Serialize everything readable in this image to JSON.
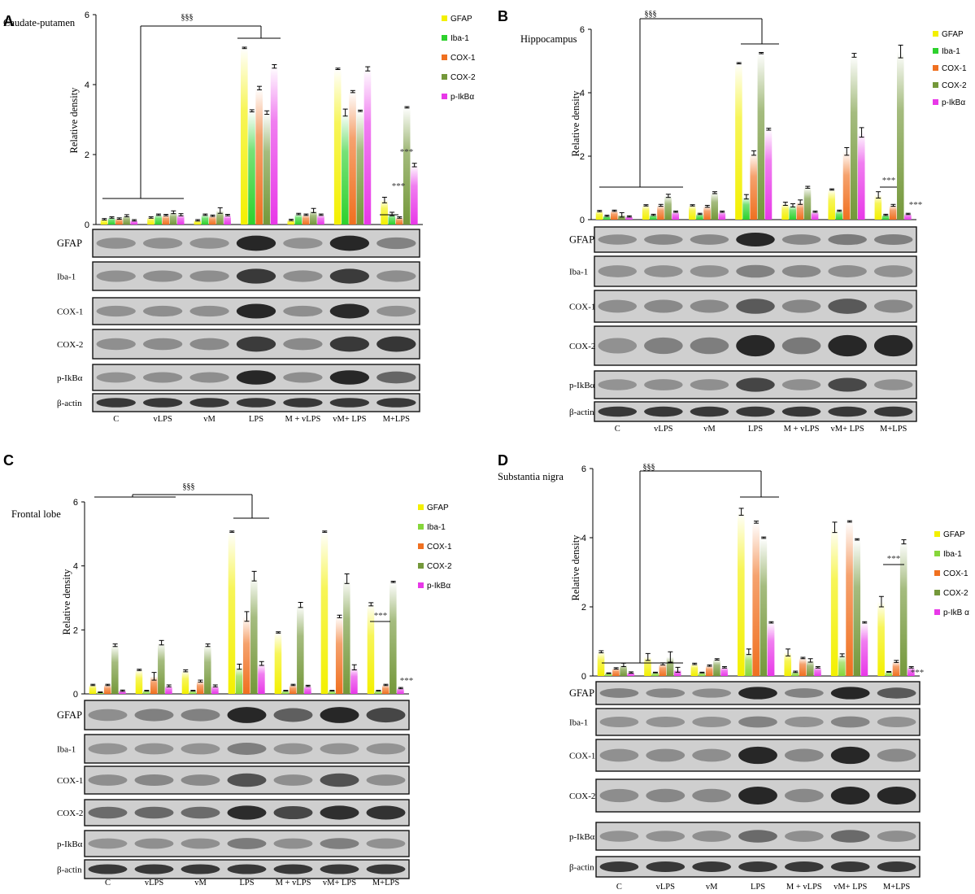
{
  "figure": {
    "y_axis_label": "Relative density",
    "group_labels": [
      "C",
      "vLPS",
      "vM",
      "LPS",
      "M + vLPS",
      "vM+ LPS",
      "M+LPS"
    ],
    "significance_main": "§§§",
    "significance_star": "***"
  },
  "chart_data": [
    {
      "type": "bar",
      "panel": "A",
      "title": "Caudate-putamen",
      "ylabel": "Relative density",
      "ylim": [
        0,
        6
      ],
      "yticks": [
        "0",
        "2",
        "4",
        "6"
      ],
      "categories": [
        "C",
        "vLPS",
        "vM",
        "LPS",
        "M + vLPS",
        "vM+ LPS",
        "M+LPS"
      ],
      "colors": [
        "#f3f000",
        "#2dd12d",
        "#f07020",
        "#74983a",
        "#e838e8"
      ],
      "series": [
        {
          "name": "GFAP",
          "values": [
            0.15,
            0.2,
            0.12,
            5.05,
            0.13,
            4.45,
            0.7
          ],
          "errors": [
            0.02,
            0.02,
            0.02,
            0.02,
            0.02,
            0.02,
            0.08
          ]
        },
        {
          "name": "Iba-1",
          "values": [
            0.2,
            0.28,
            0.28,
            3.25,
            0.3,
            3.2,
            0.3
          ],
          "errors": [
            0.02,
            0.02,
            0.02,
            0.03,
            0.02,
            0.1,
            0.05
          ]
        },
        {
          "name": "COX-1",
          "values": [
            0.17,
            0.27,
            0.25,
            3.9,
            0.28,
            3.8,
            0.2
          ],
          "errors": [
            0.02,
            0.02,
            0.02,
            0.05,
            0.02,
            0.03,
            0.02
          ]
        },
        {
          "name": "COX-2",
          "values": [
            0.25,
            0.35,
            0.4,
            3.2,
            0.4,
            3.25,
            3.35
          ],
          "errors": [
            0.03,
            0.04,
            0.08,
            0.05,
            0.06,
            0.02,
            0.02
          ]
        },
        {
          "name": "p-IkBα",
          "values": [
            0.12,
            0.28,
            0.27,
            4.52,
            0.28,
            4.45,
            1.7
          ],
          "errors": [
            0.02,
            0.03,
            0.02,
            0.05,
            0.02,
            0.06,
            0.05
          ]
        }
      ],
      "legend": "top-right",
      "blot_rows": [
        "GFAP",
        "Iba-1",
        "COX-1",
        "COX-2",
        "p-IkBα",
        "β-actin"
      ]
    },
    {
      "type": "bar",
      "panel": "B",
      "title": "Hippocampus",
      "ylabel": "Relative density",
      "ylim": [
        0,
        6
      ],
      "yticks": [
        "0",
        "2",
        "4",
        "6"
      ],
      "categories": [
        "C",
        "vLPS",
        "vM",
        "LPS",
        "M + vLPS",
        "vM+ LPS",
        "M+LPS"
      ],
      "colors": [
        "#f3f000",
        "#2dd12d",
        "#f07020",
        "#74983a",
        "#e838e8"
      ],
      "series": [
        {
          "name": "GFAP",
          "values": [
            0.27,
            0.45,
            0.45,
            4.93,
            0.5,
            0.95,
            0.78
          ],
          "errors": [
            0.02,
            0.02,
            0.02,
            0.02,
            0.05,
            0.02,
            0.1
          ]
        },
        {
          "name": "Iba-1",
          "values": [
            0.12,
            0.15,
            0.18,
            0.72,
            0.45,
            0.28,
            0.15
          ],
          "errors": [
            0.02,
            0.02,
            0.02,
            0.07,
            0.05,
            0.02,
            0.02
          ]
        },
        {
          "name": "COX-1",
          "values": [
            0.28,
            0.45,
            0.42,
            2.1,
            0.55,
            2.15,
            0.45
          ],
          "errors": [
            0.02,
            0.03,
            0.03,
            0.07,
            0.07,
            0.12,
            0.03
          ]
        },
        {
          "name": "COX-2",
          "values": [
            0.15,
            0.75,
            0.85,
            5.25,
            1.02,
            5.18,
            5.3
          ],
          "errors": [
            0.07,
            0.05,
            0.03,
            0.02,
            0.03,
            0.06,
            0.2
          ]
        },
        {
          "name": "p-IkBα",
          "values": [
            0.1,
            0.25,
            0.25,
            2.85,
            0.25,
            2.75,
            0.18
          ],
          "errors": [
            0.02,
            0.02,
            0.02,
            0.03,
            0.02,
            0.15,
            0.02
          ]
        }
      ],
      "legend": "top-right",
      "blot_rows": [
        "GFAP",
        "Iba-1",
        "COX-1",
        "COX-2",
        "p-IkBα",
        "β-actin"
      ]
    },
    {
      "type": "bar",
      "panel": "C",
      "title": "Frontal lobe",
      "ylabel": "Relative density",
      "ylim": [
        0,
        6
      ],
      "yticks": [
        "0",
        "2",
        "4",
        "6"
      ],
      "categories": [
        "C",
        "vLPS",
        "vM",
        "LPS",
        "M + vLPS",
        "vM+ LPS",
        "M+LPS"
      ],
      "colors": [
        "#f3f000",
        "#86d63a",
        "#f07020",
        "#74983a",
        "#e838e8"
      ],
      "series": [
        {
          "name": "GFAP",
          "values": [
            0.28,
            0.75,
            0.72,
            5.07,
            1.92,
            5.07,
            2.8
          ],
          "errors": [
            0.02,
            0.02,
            0.03,
            0.02,
            0.02,
            0.02,
            0.05
          ]
        },
        {
          "name": "Iba-1",
          "values": [
            0.05,
            0.1,
            0.1,
            0.85,
            0.1,
            0.1,
            0.1
          ],
          "errors": [
            0.01,
            0.01,
            0.01,
            0.08,
            0.01,
            0.01,
            0.01
          ]
        },
        {
          "name": "COX-1",
          "values": [
            0.28,
            0.55,
            0.4,
            2.42,
            0.28,
            2.42,
            0.28
          ],
          "errors": [
            0.02,
            0.12,
            0.03,
            0.15,
            0.02,
            0.04,
            0.02
          ]
        },
        {
          "name": "COX-2",
          "values": [
            1.52,
            1.6,
            1.52,
            3.68,
            2.78,
            3.6,
            3.5
          ],
          "errors": [
            0.04,
            0.07,
            0.04,
            0.15,
            0.08,
            0.15,
            0.02
          ]
        },
        {
          "name": "p-IkBα",
          "values": [
            0.1,
            0.25,
            0.25,
            0.95,
            0.25,
            0.83,
            0.18
          ],
          "errors": [
            0.02,
            0.03,
            0.03,
            0.06,
            0.02,
            0.08,
            0.02
          ]
        }
      ],
      "legend": "top-right",
      "blot_rows": [
        "GFAP",
        "Iba-1",
        "COX-1",
        "COX-2",
        "p-IkBα",
        "β-actin"
      ]
    },
    {
      "type": "bar",
      "panel": "D",
      "title": "Substantia nigra",
      "ylabel": "Relative density",
      "ylim": [
        0,
        6
      ],
      "yticks": [
        "0",
        "2",
        "4",
        "6"
      ],
      "categories": [
        "C",
        "vLPS",
        "vM",
        "LPS",
        "M + vLPS",
        "vM+ LPS",
        "M+LPS"
      ],
      "colors": [
        "#f3f000",
        "#86d63a",
        "#f07020",
        "#74983a",
        "#e838e8"
      ],
      "series": [
        {
          "name": "GFAP",
          "values": [
            0.7,
            0.55,
            0.35,
            4.75,
            0.68,
            4.3,
            2.15
          ],
          "errors": [
            0.03,
            0.1,
            0.02,
            0.1,
            0.1,
            0.15,
            0.15
          ]
        },
        {
          "name": "Iba-1",
          "values": [
            0.08,
            0.1,
            0.1,
            0.7,
            0.12,
            0.6,
            0.12
          ],
          "errors": [
            0.01,
            0.01,
            0.01,
            0.08,
            0.02,
            0.04,
            0.01
          ]
        },
        {
          "name": "COX-1",
          "values": [
            0.22,
            0.35,
            0.3,
            4.45,
            0.52,
            4.47,
            0.42
          ],
          "errors": [
            0.02,
            0.03,
            0.02,
            0.03,
            0.02,
            0.02,
            0.03
          ]
        },
        {
          "name": "COX-2",
          "values": [
            0.32,
            0.55,
            0.48,
            4.0,
            0.45,
            3.95,
            3.88
          ],
          "errors": [
            0.05,
            0.15,
            0.02,
            0.02,
            0.05,
            0.02,
            0.06
          ]
        },
        {
          "name": "p-IkB α",
          "values": [
            0.1,
            0.18,
            0.25,
            1.55,
            0.25,
            1.55,
            0.25
          ],
          "errors": [
            0.02,
            0.07,
            0.02,
            0.02,
            0.02,
            0.02,
            0.02
          ]
        }
      ],
      "legend": "top-right",
      "blot_rows": [
        "GFAP",
        "Iba-1",
        "COX-1",
        "COX-2",
        "p-IkBα",
        "β-actin"
      ]
    }
  ]
}
